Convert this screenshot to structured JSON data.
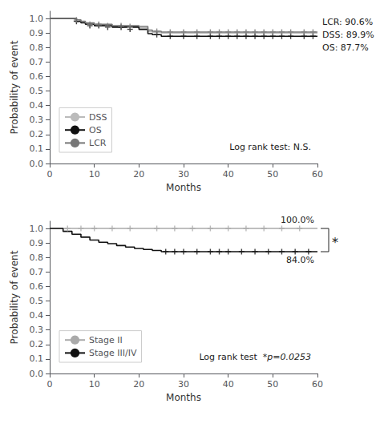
{
  "chart_data": [
    {
      "type": "step",
      "xlabel": "Months",
      "ylabel": "Probability of event",
      "xlim": [
        0,
        60
      ],
      "ylim": [
        0.0,
        1.05
      ],
      "xticks": [
        0,
        10,
        20,
        30,
        40,
        50,
        60
      ],
      "yticks": [
        {
          "value": 0.0,
          "label": "0.0"
        },
        0.1,
        0.2,
        0.3,
        0.4,
        0.5,
        0.6,
        0.7,
        0.8,
        0.9,
        {
          "value": 1.0,
          "label": "1.0"
        }
      ],
      "grid": false,
      "legend": "lower left",
      "annotation": "LCR: 90.6%\nDSS: 89.9%\nOS: 87.7%",
      "logrank_text": "Log rank test: N.S.",
      "series": [
        {
          "name": "DSS",
          "color": "#bbbbbb",
          "x": [
            0,
            5,
            6,
            7,
            8,
            10,
            14,
            20,
            22,
            23,
            25,
            60
          ],
          "values": [
            1.0,
            1.0,
            0.985,
            0.975,
            0.965,
            0.955,
            0.945,
            0.935,
            0.91,
            0.905,
            0.899,
            0.899
          ],
          "censor_x": [
            6,
            9,
            11,
            13,
            16,
            18,
            24,
            27,
            30,
            33,
            36,
            38,
            40,
            42,
            44,
            46,
            48,
            50,
            52,
            54,
            57,
            59
          ],
          "censor_values": [
            0.985,
            0.955,
            0.955,
            0.945,
            0.945,
            0.935,
            0.905,
            0.899,
            0.899,
            0.899,
            0.899,
            0.899,
            0.899,
            0.899,
            0.899,
            0.899,
            0.899,
            0.899,
            0.899,
            0.899,
            0.899,
            0.899
          ]
        },
        {
          "name": "OS",
          "color": "#111111",
          "x": [
            0,
            5,
            6,
            7,
            8,
            10,
            14,
            20,
            22,
            23,
            25,
            60
          ],
          "values": [
            1.0,
            1.0,
            0.98,
            0.97,
            0.96,
            0.95,
            0.94,
            0.925,
            0.895,
            0.888,
            0.877,
            0.877
          ],
          "censor_x": [
            6,
            9,
            11,
            13,
            16,
            18,
            24,
            27,
            30,
            33,
            36,
            38,
            40,
            42,
            44,
            46,
            48,
            50,
            52,
            54,
            57,
            59
          ],
          "censor_values": [
            0.98,
            0.95,
            0.95,
            0.94,
            0.94,
            0.925,
            0.888,
            0.877,
            0.877,
            0.877,
            0.877,
            0.877,
            0.877,
            0.877,
            0.877,
            0.877,
            0.877,
            0.877,
            0.877,
            0.877,
            0.877,
            0.877
          ]
        },
        {
          "name": "LCR",
          "color": "#777777",
          "x": [
            0,
            5,
            6,
            7,
            8,
            10,
            14,
            20,
            22,
            23,
            25,
            60
          ],
          "values": [
            1.0,
            1.0,
            0.99,
            0.98,
            0.97,
            0.96,
            0.95,
            0.945,
            0.92,
            0.912,
            0.906,
            0.906
          ],
          "censor_x": [
            6,
            9,
            11,
            13,
            16,
            18,
            24,
            27,
            30,
            33,
            36,
            38,
            40,
            42,
            44,
            46,
            48,
            50,
            52,
            54,
            57,
            59
          ],
          "censor_values": [
            0.99,
            0.96,
            0.96,
            0.95,
            0.95,
            0.945,
            0.912,
            0.906,
            0.906,
            0.906,
            0.906,
            0.906,
            0.906,
            0.906,
            0.906,
            0.906,
            0.906,
            0.906,
            0.906,
            0.906,
            0.906,
            0.906
          ]
        }
      ]
    },
    {
      "type": "step",
      "xlabel": "Months",
      "ylabel": "Probability of event",
      "xlim": [
        0,
        60
      ],
      "ylim": [
        0.0,
        1.05
      ],
      "xticks": [
        0,
        10,
        20,
        30,
        40,
        50,
        60
      ],
      "yticks": [
        {
          "value": 0.0,
          "label": "0.0"
        },
        0.1,
        0.2,
        0.3,
        0.4,
        0.5,
        0.6,
        0.7,
        0.8,
        0.9,
        {
          "value": 1.0,
          "label": "1.0"
        }
      ],
      "grid": false,
      "legend": "lower left",
      "logrank_text": "Log rank test",
      "logrank_pval": "*p=0.0253",
      "bracket_text": "*",
      "series": [
        {
          "name": "Stage II",
          "color": "#aaaaaa",
          "x": [
            0,
            60
          ],
          "values": [
            1.0,
            1.0
          ],
          "end_label": "100.0%",
          "censor_x": [
            4,
            7,
            10,
            14,
            18,
            24,
            28,
            32,
            36,
            40,
            44,
            48,
            52,
            56
          ],
          "censor_values": [
            1.0,
            1.0,
            1.0,
            1.0,
            1.0,
            1.0,
            1.0,
            1.0,
            1.0,
            1.0,
            1.0,
            1.0,
            1.0,
            1.0
          ]
        },
        {
          "name": "Stage III/IV",
          "color": "#111111",
          "x": [
            0,
            3,
            5,
            7,
            9,
            11,
            13,
            15,
            17,
            19,
            21,
            23,
            25,
            60
          ],
          "values": [
            1.0,
            0.98,
            0.96,
            0.94,
            0.92,
            0.905,
            0.895,
            0.882,
            0.872,
            0.862,
            0.855,
            0.848,
            0.84,
            0.84
          ],
          "end_label": "84.0%",
          "censor_x": [
            26,
            28,
            30,
            33,
            36,
            38,
            40,
            43,
            46,
            49,
            52,
            55,
            58
          ],
          "censor_values": [
            0.84,
            0.84,
            0.84,
            0.84,
            0.84,
            0.84,
            0.84,
            0.84,
            0.84,
            0.84,
            0.84,
            0.84,
            0.84
          ]
        }
      ]
    }
  ]
}
